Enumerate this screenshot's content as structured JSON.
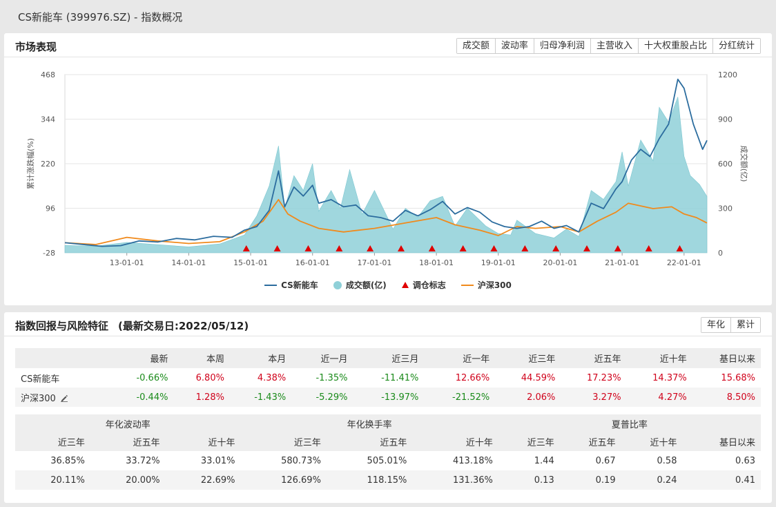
{
  "page": {
    "title": "CS新能车 (399976.SZ) - 指数概况"
  },
  "market": {
    "title": "市场表现",
    "tabs": [
      {
        "label": "成交额",
        "active": true
      },
      {
        "label": "波动率",
        "active": false
      },
      {
        "label": "归母净利润",
        "active": false
      },
      {
        "label": "主营收入",
        "active": false
      },
      {
        "label": "十大权重股占比",
        "active": false
      },
      {
        "label": "分红统计",
        "active": false
      }
    ]
  },
  "chart_data": {
    "type": "line",
    "ylabel": "累计涨跌幅(%)",
    "y2label": "成交额(亿)",
    "ylim": [
      -28,
      468
    ],
    "y2lim": [
      0,
      1200
    ],
    "yticks": [
      "468",
      "344",
      "220",
      "96",
      "-28"
    ],
    "y2ticks": [
      "1200",
      "900",
      "600",
      "300",
      "0"
    ],
    "xticks": [
      "13-01-01",
      "14-01-01",
      "15-01-01",
      "16-01-01",
      "17-01-01",
      "18-01-01",
      "19-01-01",
      "20-01-01",
      "21-01-01",
      "22-01-01"
    ],
    "xlim": [
      2012.0,
      2022.37
    ],
    "grid": true,
    "legend_position": "bottom",
    "series": [
      {
        "name": "CS新能车",
        "color": "#2b6c9e",
        "x": [
          2012.0,
          2012.3,
          2012.6,
          2012.9,
          2013.2,
          2013.5,
          2013.8,
          2014.1,
          2014.4,
          2014.7,
          2014.9,
          2015.1,
          2015.3,
          2015.45,
          2015.55,
          2015.7,
          2015.85,
          2016.0,
          2016.1,
          2016.3,
          2016.5,
          2016.7,
          2016.9,
          2017.1,
          2017.3,
          2017.5,
          2017.7,
          2017.9,
          2018.1,
          2018.3,
          2018.5,
          2018.7,
          2018.9,
          2019.1,
          2019.3,
          2019.5,
          2019.7,
          2019.9,
          2020.1,
          2020.3,
          2020.5,
          2020.7,
          2020.9,
          2021.0,
          2021.15,
          2021.3,
          2021.45,
          2021.6,
          2021.75,
          2021.9,
          2022.0,
          2022.15,
          2022.3,
          2022.37
        ],
        "y": [
          0,
          -5,
          -10,
          -8,
          5,
          2,
          12,
          8,
          18,
          15,
          35,
          45,
          90,
          200,
          100,
          155,
          130,
          160,
          110,
          120,
          100,
          105,
          75,
          70,
          60,
          90,
          75,
          92,
          115,
          80,
          98,
          85,
          58,
          45,
          40,
          45,
          60,
          40,
          48,
          30,
          110,
          95,
          150,
          170,
          230,
          260,
          240,
          290,
          330,
          455,
          430,
          330,
          260,
          285
        ]
      },
      {
        "name": "沪深300",
        "color": "#f08a1c",
        "x": [
          2012.0,
          2012.5,
          2013.0,
          2013.5,
          2014.0,
          2014.5,
          2014.9,
          2015.2,
          2015.45,
          2015.6,
          2015.8,
          2016.1,
          2016.5,
          2017.0,
          2017.5,
          2018.0,
          2018.3,
          2018.7,
          2019.0,
          2019.3,
          2019.6,
          2020.0,
          2020.3,
          2020.6,
          2020.9,
          2021.1,
          2021.5,
          2021.8,
          2022.0,
          2022.2,
          2022.37
        ],
        "y": [
          0,
          -5,
          15,
          5,
          -2,
          3,
          30,
          60,
          120,
          80,
          60,
          40,
          30,
          40,
          55,
          70,
          50,
          35,
          20,
          45,
          40,
          45,
          30,
          60,
          85,
          110,
          95,
          100,
          80,
          70,
          55
        ]
      },
      {
        "name": "成交额(亿)",
        "type": "area",
        "axis": "y2",
        "color": "#8fd0d8",
        "x": [
          2012.0,
          2012.5,
          2013.0,
          2013.5,
          2014.0,
          2014.5,
          2014.9,
          2015.1,
          2015.3,
          2015.45,
          2015.55,
          2015.7,
          2015.85,
          2016.0,
          2016.1,
          2016.3,
          2016.45,
          2016.6,
          2016.8,
          2017.0,
          2017.3,
          2017.5,
          2017.7,
          2017.9,
          2018.1,
          2018.3,
          2018.5,
          2018.8,
          2019.0,
          2019.2,
          2019.3,
          2019.6,
          2019.9,
          2020.1,
          2020.3,
          2020.5,
          2020.7,
          2020.9,
          2021.0,
          2021.1,
          2021.3,
          2021.5,
          2021.6,
          2021.75,
          2021.9,
          2022.0,
          2022.1,
          2022.25,
          2022.37
        ],
        "y": [
          50,
          45,
          70,
          55,
          40,
          60,
          120,
          250,
          450,
          720,
          300,
          520,
          420,
          600,
          280,
          420,
          300,
          560,
          260,
          420,
          160,
          300,
          240,
          350,
          380,
          180,
          300,
          180,
          130,
          120,
          220,
          130,
          100,
          160,
          110,
          420,
          360,
          480,
          680,
          450,
          760,
          620,
          980,
          880,
          1050,
          650,
          520,
          460,
          380
        ]
      }
    ],
    "markers": {
      "name": "调仓标志",
      "color": "#e00000",
      "x": [
        2014.93,
        2015.43,
        2015.93,
        2016.43,
        2016.93,
        2017.43,
        2017.93,
        2018.43,
        2018.93,
        2019.43,
        2019.93,
        2020.43,
        2020.93,
        2021.43,
        2021.93
      ]
    }
  },
  "returns": {
    "title": "指数回报与风险特征",
    "date": "(最新交易日:2022/05/12)",
    "tabs": [
      {
        "label": "年化",
        "active": true
      },
      {
        "label": "累计",
        "active": false
      }
    ],
    "headers": [
      "最新",
      "本周",
      "本月",
      "近一月",
      "近三月",
      "近一年",
      "近三年",
      "近五年",
      "近十年",
      "基日以来"
    ],
    "rows": [
      {
        "name": "CS新能车",
        "values": [
          "-0.66%",
          "6.80%",
          "4.38%",
          "-1.35%",
          "-11.41%",
          "12.66%",
          "44.59%",
          "17.23%",
          "14.37%",
          "15.68%"
        ]
      },
      {
        "name": "沪深300",
        "values": [
          "-0.44%",
          "1.28%",
          "-1.43%",
          "-5.29%",
          "-13.97%",
          "-21.52%",
          "2.06%",
          "3.27%",
          "4.27%",
          "8.50%"
        ]
      }
    ]
  },
  "risk": {
    "groups": [
      "年化波动率",
      "年化换手率",
      "夏普比率"
    ],
    "sub_headers": [
      "近三年",
      "近五年",
      "近十年",
      "近三年",
      "近五年",
      "近十年",
      "近三年",
      "近五年",
      "近十年",
      "基日以来"
    ],
    "rows": [
      [
        "36.85%",
        "33.72%",
        "33.01%",
        "580.73%",
        "505.01%",
        "413.18%",
        "1.44",
        "0.67",
        "0.58",
        "0.63"
      ],
      [
        "20.11%",
        "20.00%",
        "22.69%",
        "126.69%",
        "118.15%",
        "131.36%",
        "0.13",
        "0.19",
        "0.24",
        "0.41"
      ]
    ]
  }
}
